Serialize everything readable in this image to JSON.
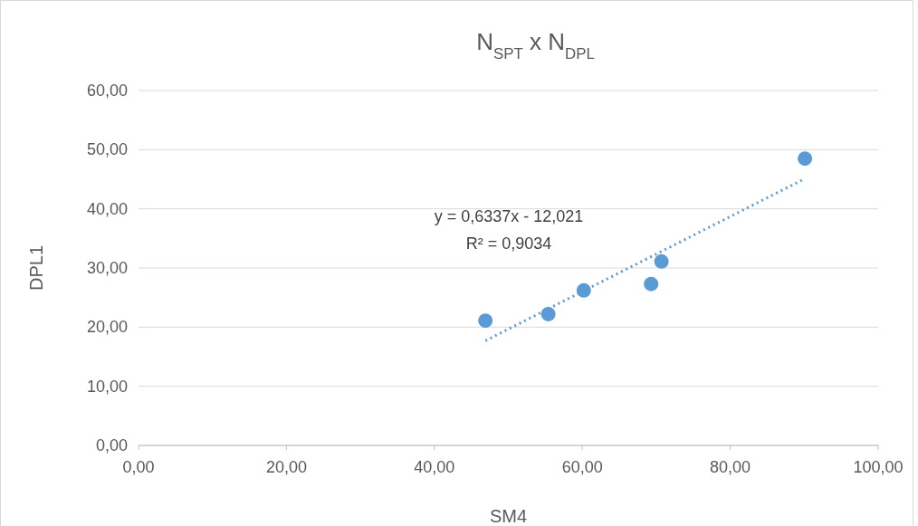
{
  "chart_data": {
    "type": "scatter",
    "title": "N$_{SPT}$ x N$_{DPL}$",
    "xlabel": "SM4",
    "ylabel": "DPL1",
    "xlim": [
      0,
      100
    ],
    "xticks": [
      {
        "value": 0,
        "label": "0,00"
      },
      {
        "value": 20,
        "label": "20,00"
      },
      {
        "value": 40,
        "label": "40,00"
      },
      {
        "value": 60,
        "label": "60,00"
      },
      {
        "value": 80,
        "label": "80,00"
      },
      {
        "value": 100,
        "label": "100,00"
      }
    ],
    "ylim": [
      0,
      60
    ],
    "yticks": [
      {
        "value": 0,
        "label": "0,00"
      },
      {
        "value": 10,
        "label": "10,00"
      },
      {
        "value": 20,
        "label": "20,00"
      },
      {
        "value": 30,
        "label": "30,00"
      },
      {
        "value": 40,
        "label": "40,00"
      },
      {
        "value": 50,
        "label": "50,00"
      },
      {
        "value": 60,
        "label": "60,00"
      }
    ],
    "grid": "y",
    "marker": "circle",
    "series": [
      {
        "color": "#5b9bd5",
        "x": [
          46.9,
          55.4,
          60.2,
          69.3,
          70.7,
          90.1
        ],
        "values": [
          21.1,
          22.2,
          26.2,
          27.3,
          31.1,
          48.5
        ]
      },
      {
        "type": "line",
        "color": "#5b9bd5",
        "line_style": "dotted",
        "marker": "none",
        "x": [
          46.9,
          90.1
        ],
        "values": [
          17.7,
          45.1
        ]
      }
    ],
    "annotations": [
      "y = 0,6337x - 12,021",
      "R² = 0,9034"
    ]
  }
}
